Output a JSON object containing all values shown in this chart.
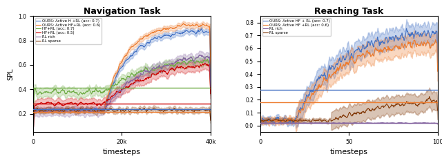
{
  "nav_title": "Navigation Task",
  "reach_title": "Reaching Task",
  "ylabel": "SPL",
  "xlabel": "timesteps",
  "nav_xlim": [
    0,
    400
  ],
  "nav_ylim": [
    0.05,
    1.0
  ],
  "reach_xlim": [
    0,
    100
  ],
  "reach_ylim": [
    -0.05,
    0.85
  ],
  "nav_xticks": [
    0,
    200,
    400
  ],
  "nav_xticklabels": [
    "0",
    "20k",
    "40k"
  ],
  "reach_xticks": [
    0,
    50,
    100
  ],
  "reach_xticklabels": [
    "0",
    "50",
    "100"
  ],
  "nav_legend": [
    "OURS: Active H +RL (acc: 0.7)",
    "OURS: Active HF+RL (acc: 0.6)",
    "HF+RL (acc: 0.7)",
    "HF+RL (acc: 0.5)",
    "RL rich",
    "RL sparse"
  ],
  "reach_legend": [
    "OURS: Active HF + RL (acc: 0.7)",
    "OURS: Active HF +RL (acc: 0.6)",
    "RL rich",
    "RL sparse"
  ],
  "nav_colors": [
    "#4472C4",
    "#ED7D31",
    "#70AD47",
    "#CC0000",
    "#8464A0",
    "#843C0C"
  ],
  "reach_colors": [
    "#4472C4",
    "#ED7D31",
    "#8464A0",
    "#843C0C"
  ],
  "nav_hline_green": 0.41,
  "nav_hline_blue": 0.235,
  "nav_hline_orange": 0.215,
  "nav_hline_red": 0.285,
  "reach_hline_blue": 0.28,
  "reach_hline_purple": 0.02,
  "reach_hline_orange": 0.18,
  "seed": 42
}
